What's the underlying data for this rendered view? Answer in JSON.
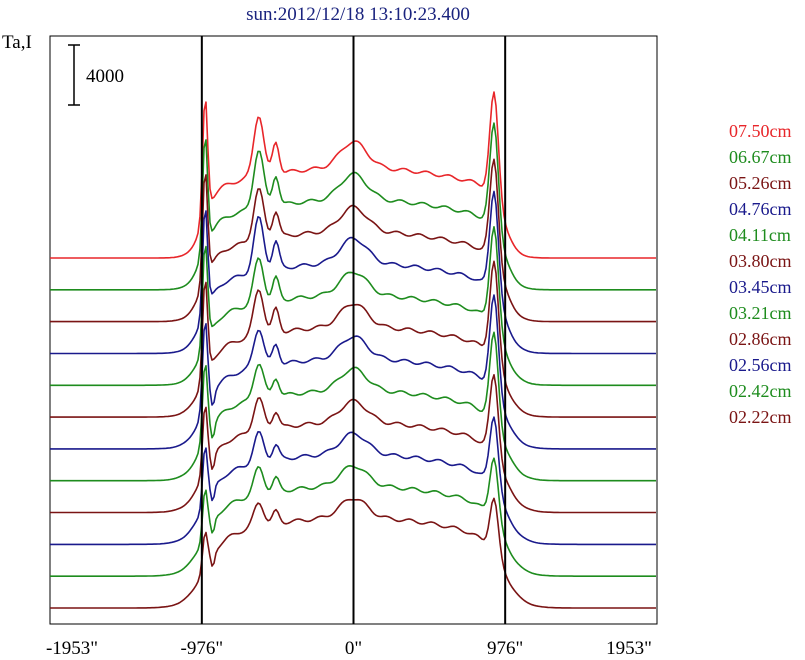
{
  "chart_data": {
    "type": "line",
    "title": "sun:2012/12/18 13:10:23.400",
    "ylabel": "Ta,I",
    "scale_bar_label": "4000",
    "x_ticks": [
      "-1953\"",
      "-976\"",
      "0\"",
      "976\"",
      "1953\""
    ],
    "x_tick_values": [
      -1953,
      -976,
      0,
      976,
      1953
    ],
    "xlim": [
      -1953,
      1953
    ],
    "reference_lines": [
      -976,
      0,
      976
    ],
    "legend_placement": "right",
    "series": [
      {
        "name": "07.50cm",
        "color": "#e8262a",
        "peak_left": 1.0,
        "peak_mid": 0.82,
        "peak_right": 0.93
      },
      {
        "name": "06.67cm",
        "color": "#1e8c1e",
        "peak_left": 0.96,
        "peak_mid": 0.78,
        "peak_right": 0.95
      },
      {
        "name": "05.26cm",
        "color": "#7a1414",
        "peak_left": 0.94,
        "peak_mid": 0.68,
        "peak_right": 0.93
      },
      {
        "name": "04.76cm",
        "color": "#1a1a8c",
        "peak_left": 0.9,
        "peak_mid": 0.72,
        "peak_right": 0.94
      },
      {
        "name": "04.11cm",
        "color": "#1e8c1e",
        "peak_left": 0.86,
        "peak_mid": 0.6,
        "peak_right": 0.91
      },
      {
        "name": "03.80cm",
        "color": "#7a1414",
        "peak_left": 0.82,
        "peak_mid": 0.62,
        "peak_right": 0.88
      },
      {
        "name": "03.45cm",
        "color": "#1a1a8c",
        "peak_left": 0.74,
        "peak_mid": 0.52,
        "peak_right": 0.86
      },
      {
        "name": "03.21cm",
        "color": "#1e8c1e",
        "peak_left": 0.66,
        "peak_mid": 0.48,
        "peak_right": 0.82
      },
      {
        "name": "02.86cm",
        "color": "#7a1414",
        "peak_left": 0.58,
        "peak_mid": 0.44,
        "peak_right": 0.74
      },
      {
        "name": "02.56cm",
        "color": "#1a1a8c",
        "peak_left": 0.5,
        "peak_mid": 0.4,
        "peak_right": 0.66
      },
      {
        "name": "02.42cm",
        "color": "#1e8c1e",
        "peak_left": 0.4,
        "peak_mid": 0.36,
        "peak_right": 0.58
      },
      {
        "name": "02.22cm",
        "color": "#7a1414",
        "peak_left": 0.3,
        "peak_mid": 0.32,
        "peak_right": 0.5
      }
    ]
  }
}
